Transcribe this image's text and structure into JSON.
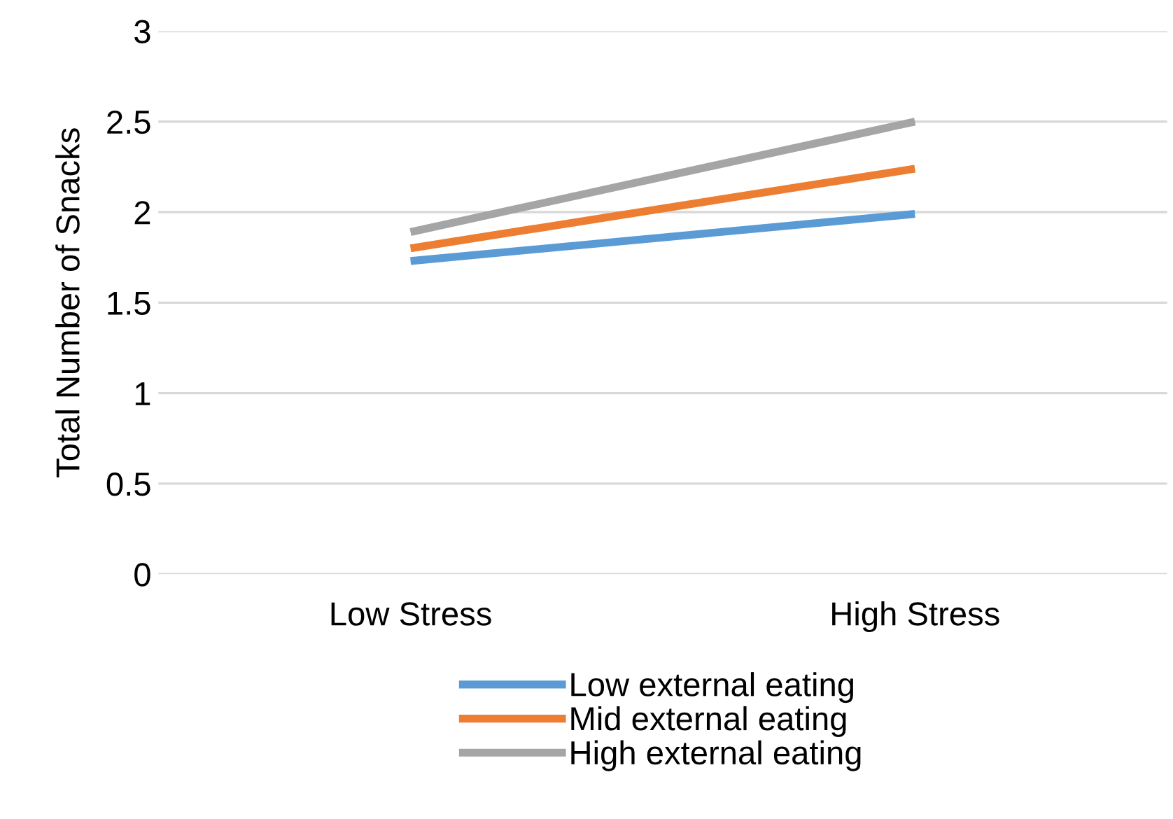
{
  "chart_data": {
    "type": "line",
    "ylabel": "Total Number of Snacks",
    "categories": [
      "Low Stress",
      "High Stress"
    ],
    "series": [
      {
        "name": "Low external eating",
        "color": "#5b9bd5",
        "values": [
          1.73,
          1.99
        ]
      },
      {
        "name": "Mid external eating",
        "color": "#ed7d31",
        "values": [
          1.8,
          2.24
        ]
      },
      {
        "name": "High external eating",
        "color": "#a5a5a5",
        "values": [
          1.89,
          2.5
        ]
      }
    ],
    "ylim": [
      0,
      3
    ],
    "yticks": [
      0,
      0.5,
      1,
      1.5,
      2,
      2.5,
      3
    ],
    "grid": "y",
    "legend": "bottom",
    "marker": "none",
    "line_style": "solid"
  }
}
